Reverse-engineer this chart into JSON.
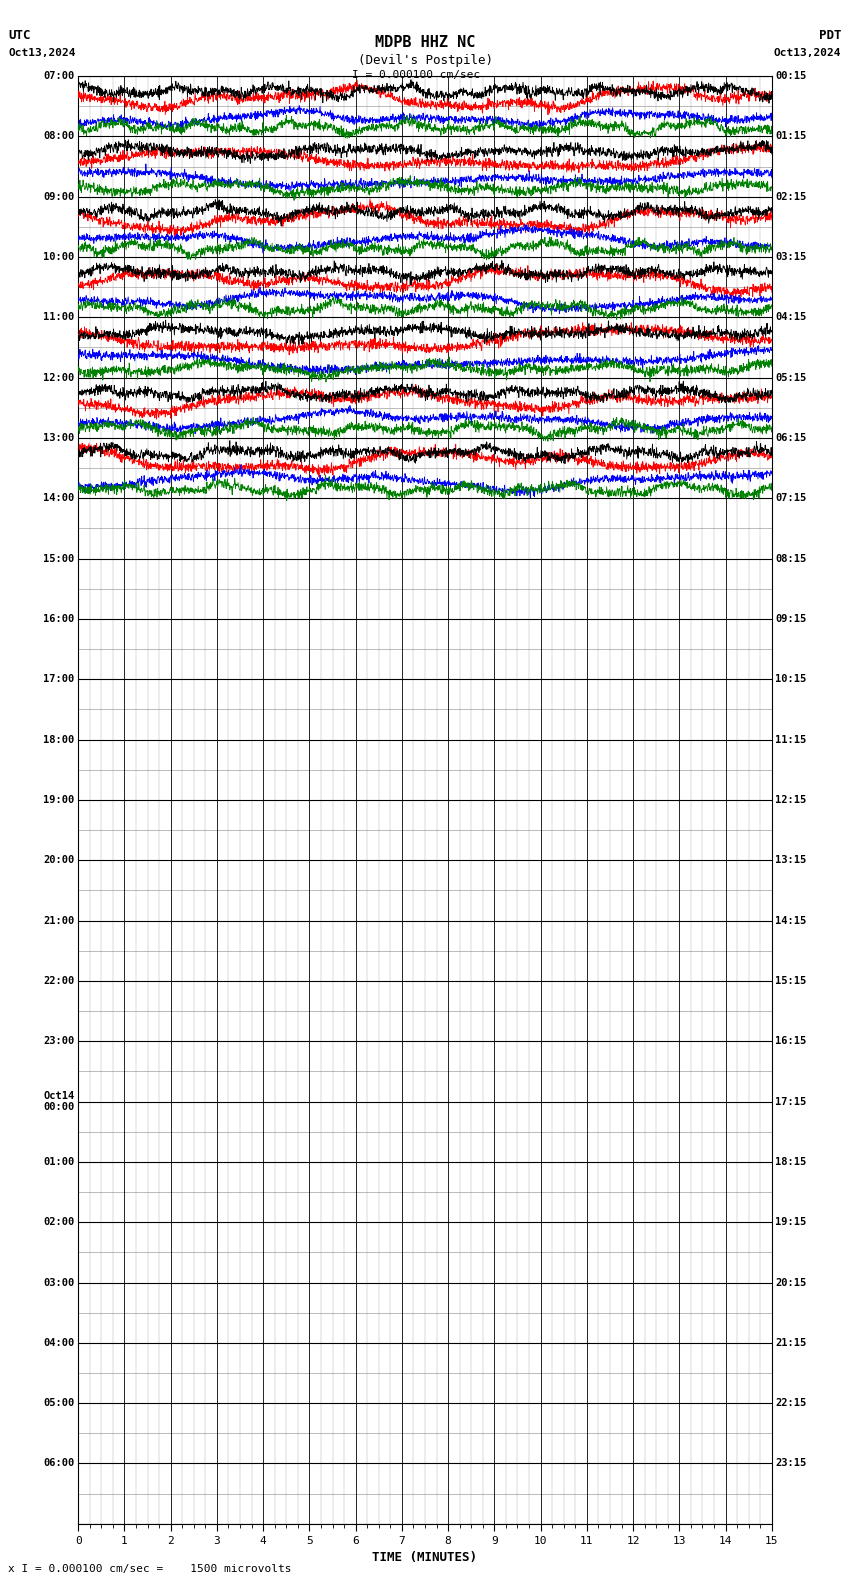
{
  "title_line1": "MDPB HHZ NC",
  "title_line2": "(Devil's Postpile)",
  "scale_label": "I = 0.000100 cm/sec",
  "left_header": "UTC",
  "left_date": "Oct13,2024",
  "right_header": "PDT",
  "right_date": "Oct13,2024",
  "xlabel": "TIME (MINUTES)",
  "bottom_caption": "x I = 0.000100 cm/sec =    1500 microvolts",
  "xmin": 0,
  "xmax": 15,
  "background_color": "#ffffff",
  "trace_colors": [
    "#000000",
    "#ff0000",
    "#0000ff",
    "#008000"
  ],
  "num_rows": 46,
  "active_rows": 7,
  "left_times_utc": [
    "07:00",
    "08:00",
    "09:00",
    "10:00",
    "11:00",
    "12:00",
    "13:00",
    "14:00",
    "15:00",
    "16:00",
    "17:00",
    "18:00",
    "19:00",
    "20:00",
    "21:00",
    "22:00",
    "23:00",
    "Oct14\n00:00",
    "01:00",
    "02:00",
    "03:00",
    "04:00",
    "05:00",
    "06:00"
  ],
  "right_times_pdt": [
    "00:15",
    "01:15",
    "02:15",
    "03:15",
    "04:15",
    "05:15",
    "06:15",
    "07:15",
    "08:15",
    "09:15",
    "10:15",
    "11:15",
    "12:15",
    "13:15",
    "14:15",
    "15:15",
    "16:15",
    "17:15",
    "18:15",
    "19:15",
    "20:15",
    "21:15",
    "22:15",
    "23:15"
  ],
  "figwidth": 8.5,
  "figheight": 15.84,
  "dpi": 100
}
